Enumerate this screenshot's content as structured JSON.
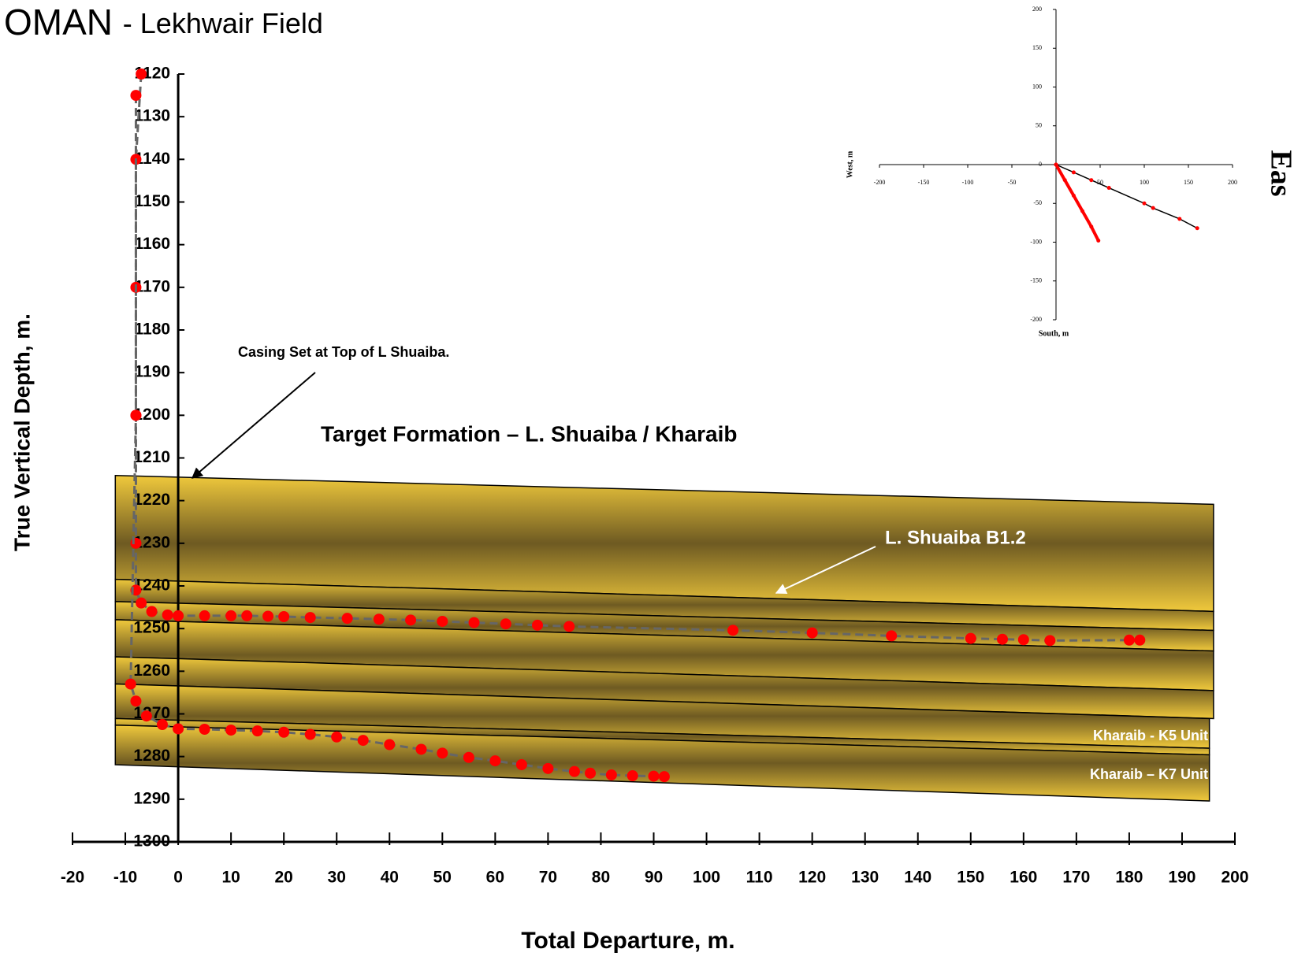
{
  "chart_data": [
    {
      "type": "line",
      "title": "OMAN",
      "subtitle": "- Lekhwair Field",
      "xlabel": "Total Departure, m.",
      "ylabel": "True Vertical Depth, m.",
      "xlim": [
        -20,
        200
      ],
      "xticks": [
        -20,
        -10,
        0,
        10,
        20,
        30,
        40,
        50,
        60,
        70,
        80,
        90,
        100,
        110,
        120,
        130,
        140,
        150,
        160,
        170,
        180,
        190,
        200
      ],
      "ylim": [
        1300,
        1120
      ],
      "yticks": [
        1120,
        1130,
        1140,
        1150,
        1160,
        1170,
        1180,
        1190,
        1200,
        1210,
        1220,
        1230,
        1240,
        1250,
        1260,
        1270,
        1280,
        1290,
        1300
      ],
      "line_color": "#666666",
      "annotations": [
        "Casing Set at Top of L Shuaiba.",
        "Target Formation – L. Shuaiba / Kharaib",
        "L. Shuaiba B1.2",
        "Kharaib - K5 Unit",
        "Kharaib – K7 Unit"
      ],
      "series": [
        {
          "color": "#ff0000",
          "x": [
            -7,
            -8,
            -8,
            -8,
            -8,
            -8,
            -7,
            -5,
            -2,
            0,
            5,
            10,
            13,
            17,
            20,
            25,
            32,
            38,
            44,
            50,
            56,
            62,
            68,
            74,
            105,
            120,
            135,
            150,
            156,
            160,
            165,
            180,
            182
          ],
          "values": [
            1120,
            1140,
            1170,
            1200,
            1230,
            1241,
            1244,
            1246,
            1246.8,
            1247,
            1247,
            1247,
            1247,
            1247.1,
            1247.2,
            1247.4,
            1247.6,
            1247.8,
            1248,
            1248.3,
            1248.6,
            1248.9,
            1249.2,
            1249.5,
            1250.4,
            1251,
            1251.7,
            1252.3,
            1252.5,
            1252.6,
            1252.8,
            1252.7,
            1252.7
          ]
        },
        {
          "color": "#ff0000",
          "x": [
            -8,
            -8,
            -9,
            -8,
            -6,
            -3,
            0,
            5,
            10,
            15,
            20,
            25,
            30,
            35,
            40,
            46,
            50,
            55,
            60,
            65,
            70,
            75,
            78,
            82,
            86,
            90,
            92
          ],
          "values": [
            1125,
            1200,
            1263,
            1267,
            1270.5,
            1272.5,
            1273.5,
            1273.6,
            1273.8,
            1274,
            1274.3,
            1274.8,
            1275.4,
            1276.2,
            1277.2,
            1278.3,
            1279.2,
            1280.2,
            1281,
            1281.9,
            1282.8,
            1283.5,
            1283.9,
            1284.3,
            1284.5,
            1284.6,
            1284.7
          ]
        }
      ]
    },
    {
      "type": "line",
      "xlabel": "South, m",
      "ylabel": "West, m",
      "side_label": "Eas",
      "xlim": [
        -200,
        200
      ],
      "xticks": [
        -200,
        -150,
        -100,
        -50,
        50,
        100,
        150,
        200
      ],
      "ylim": [
        -200,
        200
      ],
      "yticks": [
        -200,
        -150,
        -100,
        -50,
        0,
        50,
        100,
        150,
        200
      ],
      "series": [
        {
          "color": "#ff0000",
          "line_color": "#000000",
          "x": [
            0,
            20,
            40,
            60,
            100,
            110,
            140,
            160
          ],
          "values": [
            0,
            -10,
            -20,
            -30,
            -50,
            -56,
            -70,
            -82
          ]
        },
        {
          "color": "#ff0000",
          "line_color": "#ff0000",
          "x": [
            0,
            10,
            20,
            30,
            40,
            48
          ],
          "values": [
            0,
            -20,
            -40,
            -60,
            -80,
            -98
          ]
        }
      ]
    }
  ]
}
